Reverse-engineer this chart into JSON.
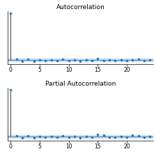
{
  "title_acf": "Autocorrelation",
  "title_pacf": "Partial Autocorrelation",
  "acf_values": [
    1.0,
    0.025,
    -0.03,
    0.015,
    -0.02,
    0.01,
    -0.015,
    0.005,
    -0.01,
    0.015,
    -0.005,
    0.01,
    -0.025,
    0.005,
    -0.015,
    0.035,
    -0.01,
    0.005,
    -0.005,
    0.01,
    -0.015,
    0.005,
    0.02,
    -0.005,
    0.01
  ],
  "pacf_values": [
    1.0,
    0.025,
    -0.03,
    0.015,
    -0.02,
    0.01,
    -0.015,
    0.005,
    -0.01,
    0.015,
    -0.005,
    0.01,
    -0.025,
    0.005,
    -0.015,
    0.045,
    0.03,
    -0.005,
    -0.005,
    0.01,
    -0.015,
    0.04,
    0.02,
    -0.005,
    0.01
  ],
  "conf_level": 0.028,
  "bar_color": "#1f77b4",
  "conf_color": "#aec7e8",
  "conf_alpha": 0.5,
  "stem_color": "#404040",
  "markersize": 2.5,
  "xticks": [
    0,
    5,
    10,
    15,
    20
  ],
  "xlim": [
    -0.5,
    24.5
  ],
  "ylim": [
    -0.08,
    1.05
  ],
  "title_fontsize": 6.5,
  "tick_fontsize": 5.5
}
